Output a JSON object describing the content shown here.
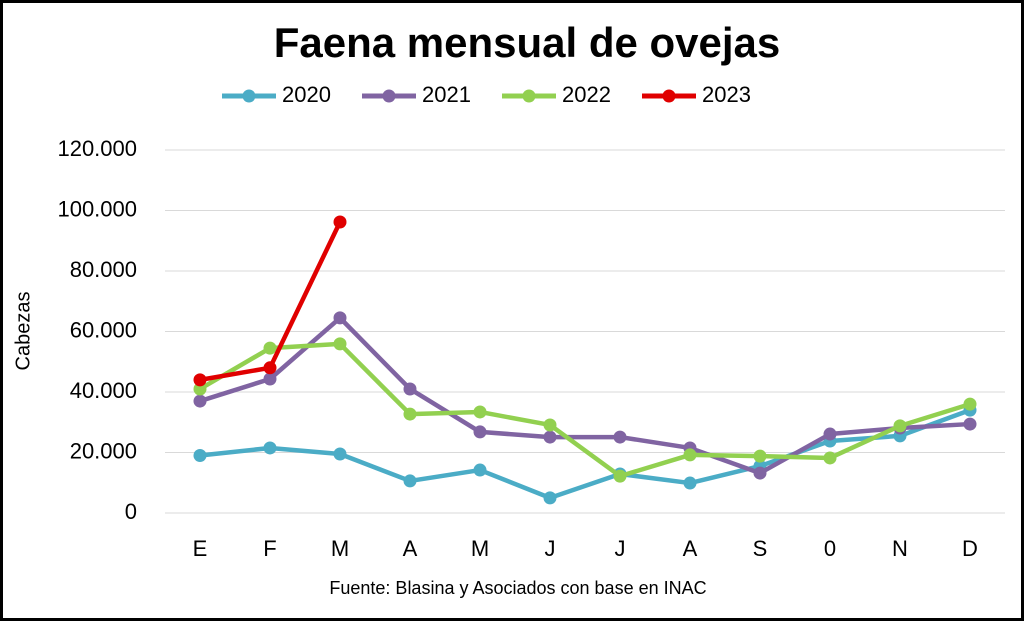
{
  "chart_data": {
    "type": "line",
    "title": "Faena mensual de ovejas",
    "y_label": "Cabezas",
    "source": "Fuente: Blasina y Asociados con base en INAC",
    "categories": [
      "E",
      "F",
      "M",
      "A",
      "M",
      "J",
      "J",
      "A",
      "S",
      "0",
      "N",
      "D"
    ],
    "series": [
      {
        "name": "2020",
        "color": "#4bacc6",
        "values": [
          19000,
          21500,
          19500,
          10600,
          14200,
          5000,
          12900,
          9900,
          15500,
          23800,
          25500,
          34000
        ]
      },
      {
        "name": "2021",
        "color": "#8064a2",
        "values": [
          37000,
          44300,
          64500,
          41000,
          26800,
          25100,
          25100,
          21500,
          13200,
          26100,
          28100,
          29400
        ]
      },
      {
        "name": "2022",
        "color": "#92d050",
        "values": [
          41000,
          54500,
          55900,
          32700,
          33400,
          29100,
          12200,
          19200,
          18800,
          18200,
          28800,
          36000
        ]
      },
      {
        "name": "2023",
        "color": "#e00000",
        "values": [
          44000,
          48000,
          96200,
          null,
          null,
          null,
          null,
          null,
          null,
          null,
          null,
          null
        ]
      }
    ],
    "ylim": [
      0,
      120000
    ],
    "yticks": [
      0,
      {
        "value": 20000,
        "label": "20.000"
      },
      {
        "value": 40000,
        "label": "40.000"
      },
      {
        "value": 60000,
        "label": "60.000"
      },
      {
        "value": 80000,
        "label": "80.000"
      },
      {
        "value": 100000,
        "label": "100.000"
      },
      {
        "value": 120000,
        "label": "120.000"
      }
    ],
    "grid": true,
    "legend": "top"
  }
}
